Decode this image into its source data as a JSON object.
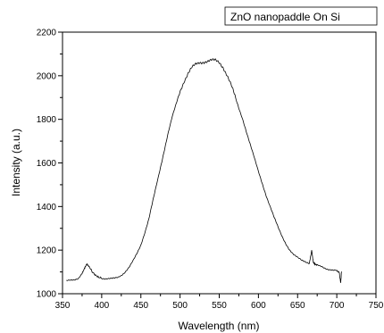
{
  "chart_data": {
    "type": "line",
    "title": "",
    "xlabel": "Wavelength (nm)",
    "ylabel": "Intensity (a.u.)",
    "xlim": [
      350,
      750
    ],
    "ylim": [
      1000,
      2200
    ],
    "xticks": [
      350,
      400,
      450,
      500,
      550,
      600,
      650,
      700,
      750
    ],
    "yticks": [
      1000,
      1200,
      1400,
      1600,
      1800,
      2000,
      2200
    ],
    "xtick_labels": [
      "350",
      "400",
      "450",
      "500",
      "550",
      "600",
      "650",
      "700",
      "750"
    ],
    "ytick_labels": [
      "1000",
      "1200",
      "1400",
      "1600",
      "1800",
      "2000",
      "2200"
    ],
    "grid": false,
    "legend_position": "top-right",
    "series": [
      {
        "name": "ZnO nanopaddle On Si",
        "color": "#000000",
        "x": [
          355,
          360,
          365,
          370,
          375,
          378,
          381,
          384,
          388,
          392,
          396,
          400,
          405,
          410,
          415,
          420,
          425,
          430,
          435,
          440,
          445,
          450,
          455,
          460,
          465,
          470,
          475,
          480,
          485,
          490,
          495,
          500,
          505,
          510,
          515,
          520,
          525,
          530,
          535,
          540,
          545,
          550,
          555,
          560,
          565,
          570,
          575,
          580,
          585,
          590,
          595,
          600,
          605,
          610,
          615,
          620,
          625,
          630,
          635,
          640,
          645,
          650,
          655,
          660,
          665,
          668,
          670,
          672,
          675,
          680,
          685,
          690,
          695,
          700,
          703,
          705,
          706
        ],
        "y": [
          1060,
          1060,
          1062,
          1070,
          1095,
          1115,
          1135,
          1125,
          1100,
          1085,
          1075,
          1072,
          1068,
          1068,
          1070,
          1075,
          1085,
          1100,
          1120,
          1150,
          1185,
          1225,
          1280,
          1340,
          1420,
          1500,
          1580,
          1660,
          1740,
          1810,
          1870,
          1930,
          1975,
          2010,
          2035,
          2050,
          2060,
          2065,
          2068,
          2070,
          2068,
          2060,
          2040,
          2005,
          1960,
          1905,
          1850,
          1800,
          1740,
          1680,
          1620,
          1560,
          1505,
          1450,
          1400,
          1350,
          1305,
          1265,
          1230,
          1200,
          1178,
          1165,
          1155,
          1148,
          1140,
          1200,
          1145,
          1135,
          1130,
          1125,
          1118,
          1112,
          1108,
          1105,
          1100,
          1050,
          1102
        ]
      }
    ]
  }
}
